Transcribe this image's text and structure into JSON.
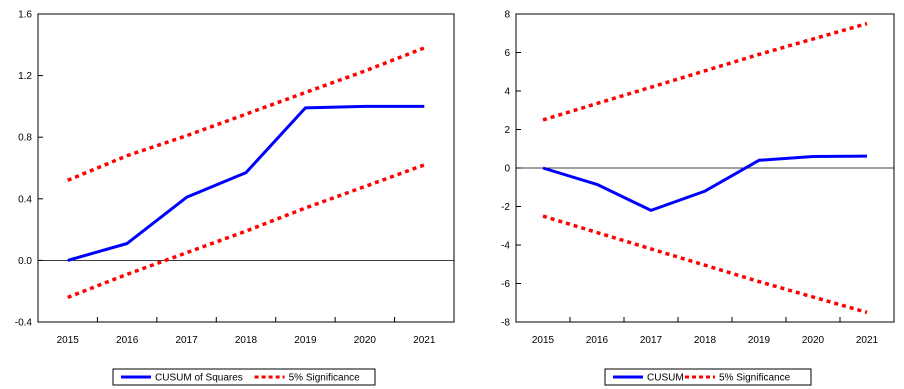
{
  "chart_data": [
    {
      "type": "line",
      "title": "",
      "xlabel": "",
      "ylabel": "",
      "categories": [
        "2015",
        "2016",
        "2017",
        "2018",
        "2019",
        "2020",
        "2021"
      ],
      "ylim": [
        -0.4,
        1.6
      ],
      "yticks": [
        "-0.4",
        "0.0",
        "0.4",
        "0.8",
        "1.2",
        "1.6"
      ],
      "grid": false,
      "zero_line": true,
      "legend_position": "bottom",
      "series": [
        {
          "name": "CUSUM of Squares",
          "color": "#0000ff",
          "style": "solid",
          "values": [
            0.0,
            0.11,
            0.41,
            0.57,
            0.99,
            1.0,
            1.0
          ]
        },
        {
          "name": "5% Significance",
          "color": "#ff0000",
          "style": "dotted",
          "values": [
            0.52,
            0.68,
            0.81,
            0.95,
            1.09,
            1.23,
            1.38
          ]
        },
        {
          "name": "",
          "color": "#ff0000",
          "style": "dotted",
          "values": [
            -0.24,
            -0.09,
            0.05,
            0.19,
            0.34,
            0.48,
            0.62
          ]
        }
      ]
    },
    {
      "type": "line",
      "title": "",
      "xlabel": "",
      "ylabel": "",
      "categories": [
        "2015",
        "2016",
        "2017",
        "2018",
        "2019",
        "2020",
        "2021"
      ],
      "ylim": [
        -8,
        8
      ],
      "yticks": [
        "-8",
        "-6",
        "-4",
        "-2",
        "0",
        "2",
        "4",
        "6",
        "8"
      ],
      "grid": false,
      "zero_line": true,
      "legend_position": "bottom",
      "series": [
        {
          "name": "CUSUM",
          "color": "#0000ff",
          "style": "solid",
          "values": [
            0.0,
            -0.85,
            -2.2,
            -1.2,
            0.4,
            0.6,
            0.62
          ]
        },
        {
          "name": "5% Significance",
          "color": "#ff0000",
          "style": "dotted",
          "values": [
            2.5,
            3.35,
            4.2,
            5.05,
            5.9,
            6.7,
            7.5
          ]
        },
        {
          "name": "",
          "color": "#ff0000",
          "style": "dotted",
          "values": [
            -2.5,
            -3.35,
            -4.2,
            -5.05,
            -5.9,
            -6.7,
            -7.5
          ]
        }
      ]
    }
  ]
}
